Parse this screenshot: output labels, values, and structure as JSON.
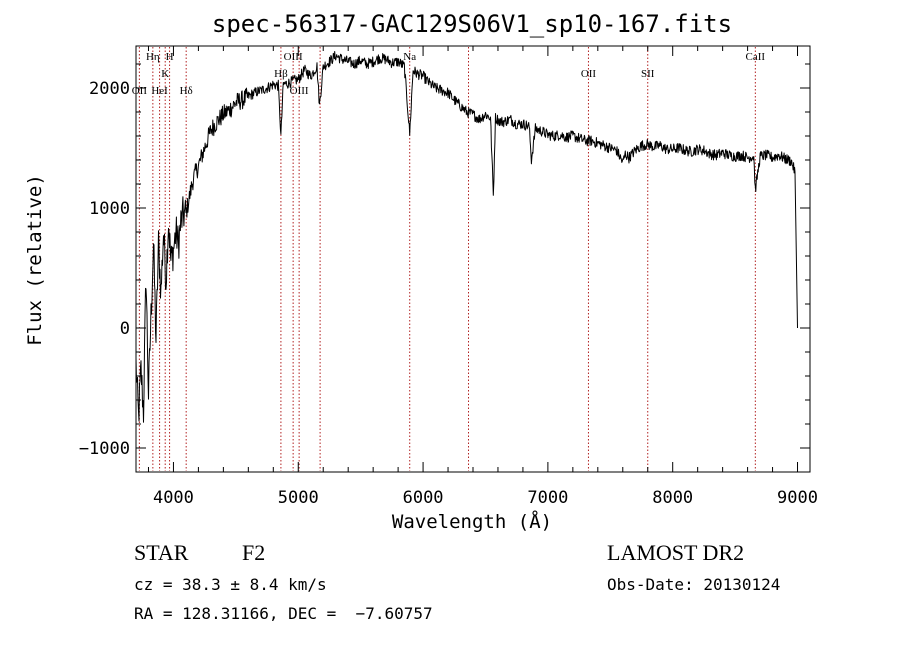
{
  "chart_data": {
    "type": "line",
    "title": "spec-56317-GAC129S06V1_sp10-167.fits",
    "xlabel": "Wavelength (Å)",
    "ylabel": "Flux (relative)",
    "xlim": [
      3700,
      9100
    ],
    "ylim": [
      -1200,
      2350
    ],
    "xticks": [
      {
        "value": 4000,
        "label": "4000"
      },
      {
        "value": 5000,
        "label": "5000"
      },
      {
        "value": 6000,
        "label": "6000"
      },
      {
        "value": 7000,
        "label": "7000"
      },
      {
        "value": 8000,
        "label": "8000"
      },
      {
        "value": 9000,
        "label": "9000"
      }
    ],
    "yticks": [
      {
        "value": -1000,
        "label": "−1000"
      },
      {
        "value": 0,
        "label": "0"
      },
      {
        "value": 1000,
        "label": "1000"
      },
      {
        "value": 2000,
        "label": "2000"
      }
    ],
    "grid": false,
    "series": [
      {
        "color": "#000000",
        "x": [
          3700,
          3720,
          3740,
          3760,
          3780,
          3800,
          3820,
          3840,
          3860,
          3880,
          3900,
          3920,
          3940,
          3960,
          3980,
          4000,
          4020,
          4040,
          4060,
          4080,
          4100,
          4120,
          4140,
          4160,
          4180,
          4200,
          4250,
          4300,
          4350,
          4400,
          4450,
          4500,
          4550,
          4600,
          4650,
          4700,
          4750,
          4800,
          4840,
          4861,
          4880,
          4920,
          4960,
          5000,
          5050,
          5100,
          5150,
          5170,
          5200,
          5250,
          5300,
          5350,
          5400,
          5450,
          5500,
          5550,
          5600,
          5650,
          5700,
          5750,
          5800,
          5850,
          5893,
          5920,
          5950,
          6000,
          6050,
          6100,
          6150,
          6200,
          6250,
          6300,
          6350,
          6400,
          6450,
          6500,
          6540,
          6563,
          6580,
          6620,
          6650,
          6700,
          6750,
          6800,
          6850,
          6868,
          6900,
          6950,
          7000,
          7050,
          7100,
          7150,
          7200,
          7250,
          7300,
          7350,
          7400,
          7450,
          7500,
          7550,
          7600,
          7620,
          7650,
          7700,
          7750,
          7800,
          7850,
          7900,
          7950,
          8000,
          8050,
          8100,
          8150,
          8200,
          8250,
          8300,
          8350,
          8400,
          8450,
          8500,
          8550,
          8600,
          8650,
          8662,
          8700,
          8750,
          8800,
          8850,
          8900,
          8950,
          8980,
          9000
        ],
        "y": [
          -300,
          -750,
          -350,
          -700,
          450,
          -550,
          100,
          700,
          -100,
          700,
          300,
          800,
          400,
          900,
          550,
          650,
          800,
          700,
          880,
          950,
          950,
          1050,
          1150,
          1250,
          1300,
          1350,
          1500,
          1650,
          1720,
          1780,
          1820,
          1880,
          1900,
          1930,
          1960,
          1980,
          2000,
          2030,
          2020,
          1600,
          2030,
          2040,
          2060,
          2070,
          2150,
          2100,
          2180,
          1850,
          2180,
          2220,
          2270,
          2240,
          2220,
          2200,
          2230,
          2200,
          2220,
          2250,
          2240,
          2210,
          2220,
          2180,
          1620,
          2150,
          2120,
          2100,
          2040,
          2000,
          1980,
          1960,
          1900,
          1850,
          1800,
          1780,
          1740,
          1780,
          1750,
          1100,
          1750,
          1720,
          1720,
          1740,
          1700,
          1700,
          1680,
          1400,
          1660,
          1640,
          1610,
          1600,
          1610,
          1590,
          1600,
          1580,
          1560,
          1560,
          1540,
          1520,
          1500,
          1480,
          1380,
          1450,
          1420,
          1480,
          1520,
          1530,
          1510,
          1520,
          1490,
          1490,
          1500,
          1480,
          1470,
          1490,
          1480,
          1450,
          1440,
          1460,
          1440,
          1430,
          1440,
          1420,
          1430,
          1150,
          1430,
          1440,
          1420,
          1440,
          1410,
          1390,
          1300,
          0
        ]
      }
    ],
    "line_markers": [
      {
        "label": "Hη",
        "x": 3835,
        "row": 1
      },
      {
        "label": "H",
        "x": 3969,
        "row": 1
      },
      {
        "label": "K",
        "x": 3934,
        "row": 2
      },
      {
        "label": "OII",
        "x": 3727,
        "row": 3
      },
      {
        "label": "HeI",
        "x": 3889,
        "row": 3
      },
      {
        "label": "Hδ",
        "x": 4102,
        "row": 3
      },
      {
        "label": "OIII",
        "x": 4959,
        "row": 1
      },
      {
        "label": "Hβ",
        "x": 4861,
        "row": 2
      },
      {
        "label": "OIII",
        "x": 5007,
        "row": 3
      },
      {
        "label": "Na",
        "x": 5893,
        "row": 1
      },
      {
        "label": "OII",
        "x": 7325,
        "row": 2
      },
      {
        "label": "SII",
        "x": 7800,
        "row": 2
      },
      {
        "label": "CaII",
        "x": 8662,
        "row": 1
      }
    ],
    "marker_lines_x": [
      3727,
      3835,
      3889,
      3934,
      3969,
      4102,
      4861,
      4959,
      5007,
      5175,
      5893,
      6364,
      7325,
      7800,
      8662
    ]
  },
  "info": {
    "class_label": "STAR",
    "subclass": "F2",
    "survey": "LAMOST DR2",
    "cz": "cz = 38.3 ± 8.4 km/s",
    "obs_date": "Obs-Date: 20130124",
    "coords": "RA = 128.31166, DEC =  −7.60757"
  }
}
